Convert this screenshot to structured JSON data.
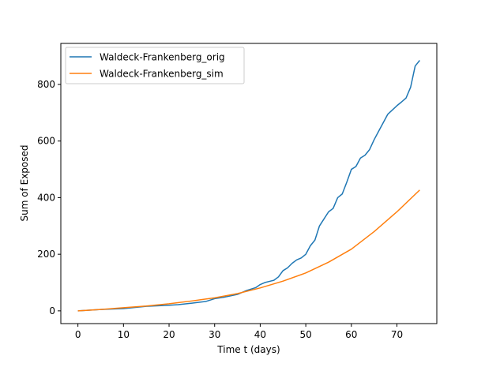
{
  "colors": {
    "series_orig": "#1f77b4",
    "series_sim": "#ff7f0e",
    "axes": "#000000",
    "background": "#ffffff",
    "legend_border": "#cccccc"
  },
  "chart_data": {
    "type": "line",
    "title": "",
    "xlabel": "Time t (days)",
    "ylabel": "Sum of Exposed",
    "xlim": [
      -3.75,
      78.75
    ],
    "ylim": [
      -45,
      945
    ],
    "xticks": [
      0,
      10,
      20,
      30,
      40,
      50,
      60,
      70
    ],
    "yticks": [
      0,
      200,
      400,
      600,
      800
    ],
    "grid": false,
    "legend_position": "upper-left",
    "series": [
      {
        "name": "Waldeck-Frankenberg_orig",
        "color": "#1f77b4",
        "x": [
          0,
          5,
          10,
          15,
          20,
          22,
          25,
          28,
          30,
          32,
          35,
          37,
          39,
          40,
          41,
          42,
          43,
          44,
          45,
          46,
          47,
          48,
          49,
          50,
          51,
          52,
          53,
          54,
          55,
          56,
          57,
          58,
          59,
          60,
          61,
          62,
          63,
          64,
          65,
          66,
          67,
          68,
          69,
          70,
          71,
          72,
          73,
          74,
          75
        ],
        "y": [
          0,
          5,
          8,
          16,
          20,
          22,
          27,
          33,
          43,
          48,
          58,
          72,
          82,
          93,
          100,
          104,
          108,
          120,
          142,
          152,
          168,
          180,
          187,
          200,
          230,
          250,
          300,
          325,
          350,
          362,
          400,
          413,
          455,
          500,
          510,
          540,
          550,
          570,
          605,
          635,
          665,
          695,
          710,
          725,
          738,
          752,
          790,
          865,
          885
        ]
      },
      {
        "name": "Waldeck-Frankenberg_sim",
        "color": "#ff7f0e",
        "x": [
          0,
          5,
          10,
          15,
          20,
          25,
          30,
          35,
          40,
          45,
          50,
          55,
          60,
          65,
          70,
          75
        ],
        "y": [
          0,
          5,
          11,
          17,
          25,
          35,
          46,
          61,
          81,
          105,
          134,
          172,
          218,
          280,
          350,
          427
        ]
      }
    ]
  }
}
